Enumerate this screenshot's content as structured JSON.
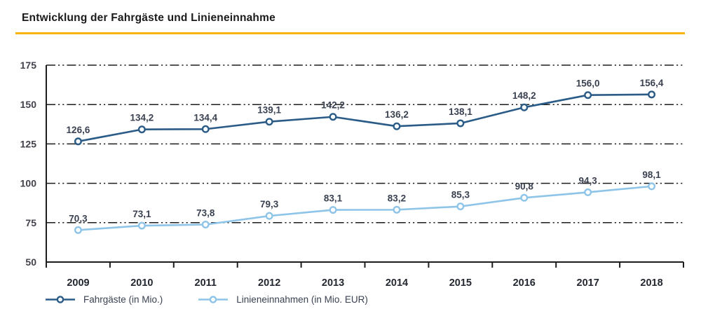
{
  "chart_data": {
    "type": "line",
    "title": "Entwicklung der Fahrgäste und Linieneinnahme",
    "categories": [
      "2009",
      "2010",
      "2011",
      "2012",
      "2013",
      "2014",
      "2015",
      "2016",
      "2017",
      "2018"
    ],
    "series": [
      {
        "name": "Fahrgäste (in Mio.)",
        "color": "#2b5b87",
        "values": [
          126.6,
          134.2,
          134.4,
          139.1,
          142.2,
          136.2,
          138.1,
          148.2,
          156.0,
          156.4
        ],
        "value_labels": [
          "126,6",
          "134,2",
          "134,4",
          "139,1",
          "142,2",
          "136,2",
          "138,1",
          "148,2",
          "156,0",
          "156,4"
        ]
      },
      {
        "name": "Linieneinnahmen (in Mio. EUR)",
        "color": "#8ec4e8",
        "values": [
          70.3,
          73.1,
          73.8,
          79.3,
          83.1,
          83.2,
          85.3,
          90.8,
          94.3,
          98.1
        ],
        "value_labels": [
          "70,3",
          "73,1",
          "73,8",
          "79,3",
          "83,1",
          "83,2",
          "85,3",
          "90,8",
          "94,3",
          "98,1"
        ]
      }
    ],
    "xlabel": "",
    "ylabel": "",
    "ylim": [
      50,
      175
    ],
    "yticks": [
      50,
      75,
      100,
      125,
      150,
      175
    ],
    "grid": "horizontal dash-dot",
    "marker": "open-circle",
    "legend_position": "bottom"
  },
  "colors": {
    "accent_rule": "#f6b40a",
    "axis": "#1d1d1b",
    "value_label_text": "#3a4150"
  }
}
